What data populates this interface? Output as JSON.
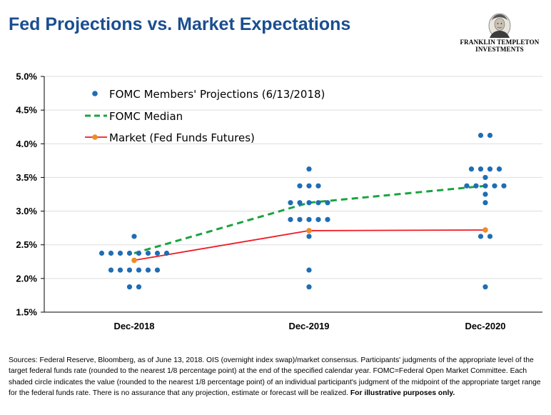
{
  "title": "Fed Projections vs. Market Expectations",
  "logo": {
    "name": "franklin-templeton-logo",
    "line1": "FRANKLIN TEMPLETON",
    "line2": "INVESTMENTS"
  },
  "footnote": {
    "text": "Sources: Federal Reserve, Bloomberg, as of June 13, 2018. OIS (overnight index swap)/market consensus. Participants' judgments of the appropriate level of the target federal funds rate (rounded to the nearest 1/8 percentage point) at the end of the specified calendar year. FOMC=Federal Open Market Committee. Each shaded circle indicates the value (rounded to the nearest 1/8 percentage point) of an individual participant's judgment of the midpoint of the appropriate target range for the federal funds rate. There is no assurance that any projection, estimate or forecast will be realized.",
    "bold_text": "For illustrative purposes only."
  },
  "colors": {
    "title": "#1a4e8f",
    "dots": "#1f6db5",
    "median": "#1aa340",
    "market_line": "#ee1c25",
    "market_marker": "#f08a24",
    "grid": "#dddddd"
  },
  "chart_data": {
    "type": "scatter",
    "categories": [
      "Dec-2018",
      "Dec-2019",
      "Dec-2020"
    ],
    "y_ticks": [
      "1.5%",
      "2.0%",
      "2.5%",
      "3.0%",
      "3.5%",
      "4.0%",
      "4.5%",
      "5.0%"
    ],
    "ylim": [
      1.5,
      5.0
    ],
    "grid": true,
    "legend_placement": "top-left",
    "series": [
      {
        "name": "FOMC Members' Projections (6/13/2018)",
        "kind": "dots",
        "color": "#1f6db5",
        "points": [
          {
            "category": "Dec-2018",
            "values": [
              2.625,
              2.375,
              2.375,
              2.375,
              2.375,
              2.375,
              2.375,
              2.375,
              2.375,
              2.125,
              2.125,
              2.125,
              2.125,
              2.125,
              2.125,
              1.875,
              1.875
            ]
          },
          {
            "category": "Dec-2019",
            "values": [
              3.625,
              3.375,
              3.375,
              3.375,
              3.125,
              3.125,
              3.125,
              3.125,
              3.125,
              2.875,
              2.875,
              2.875,
              2.875,
              2.875,
              2.625,
              2.125,
              1.875
            ]
          },
          {
            "category": "Dec-2020",
            "values": [
              4.125,
              4.125,
              3.625,
              3.625,
              3.625,
              3.625,
              3.5,
              3.375,
              3.375,
              3.375,
              3.375,
              3.375,
              3.25,
              3.125,
              2.625,
              2.625,
              1.875
            ]
          }
        ]
      },
      {
        "name": "FOMC Median",
        "kind": "dashed-line",
        "color": "#1aa340",
        "values": [
          2.375,
          3.125,
          3.375
        ]
      },
      {
        "name": "Market (Fed Funds Futures)",
        "kind": "line-markers",
        "color": "#ee1c25",
        "marker_color": "#f08a24",
        "values": [
          2.27,
          2.71,
          2.72
        ]
      }
    ]
  }
}
